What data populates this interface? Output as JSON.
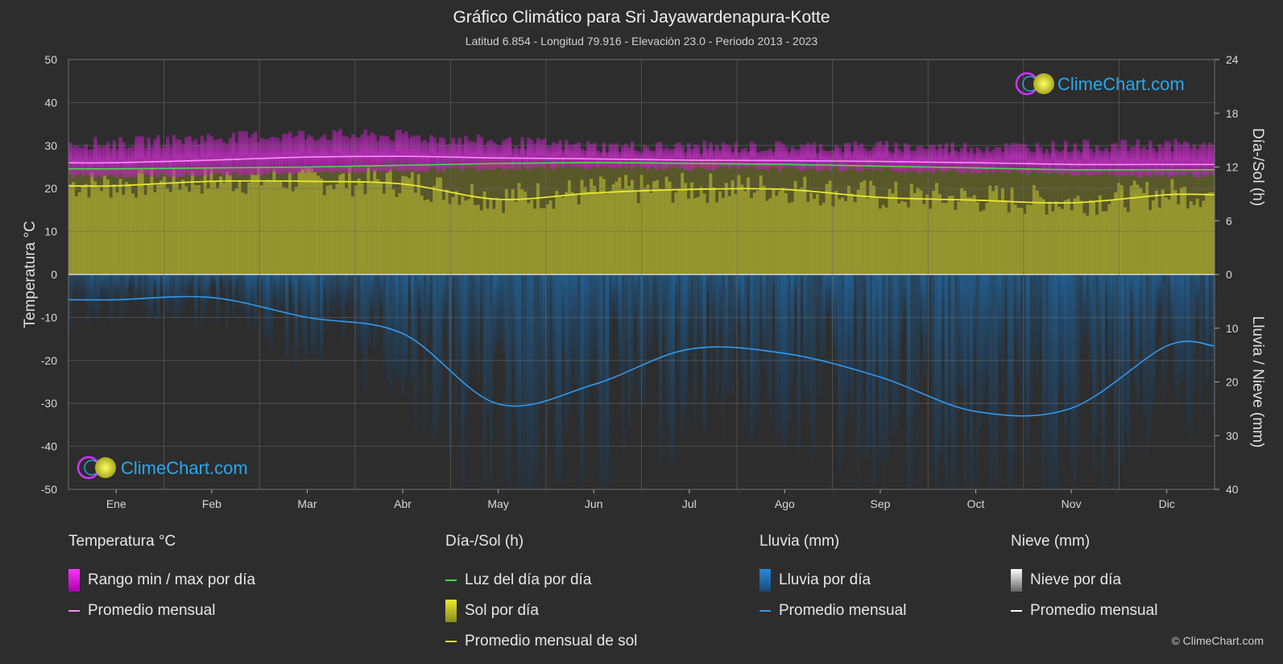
{
  "title": "Gráfico Climático para Sri Jayawardenapura-Kotte",
  "subtitle": "Latitud 6.854 - Longitud 79.916 - Elevación 23.0 - Periodo 2013 - 2023",
  "watermark": "ClimeChart.com",
  "copyright": "© ClimeChart.com",
  "colors": {
    "background": "#2d2d2d",
    "temp_range": "#d030d0",
    "temp_avg": "#ff88ff",
    "daylight": "#44dd44",
    "sun_fill": "#a0a030",
    "sun_avg": "#e8e830",
    "rain": "#2277bb",
    "rain_avg": "#3399ee",
    "snow_avg": "#ffffff"
  },
  "legend": {
    "temp": {
      "header": "Temperatura °C",
      "range": "Rango min / max por día",
      "avg": "Promedio mensual"
    },
    "sun": {
      "header": "Día-/Sol (h)",
      "daylight": "Luz del día por día",
      "sun": "Sol por día",
      "avg": "Promedio mensual de sol"
    },
    "rain": {
      "header": "Lluvia (mm)",
      "per_day": "Lluvia por día",
      "avg": "Promedio mensual"
    },
    "snow": {
      "header": "Nieve (mm)",
      "per_day": "Nieve por día",
      "avg": "Promedio mensual"
    }
  },
  "chart_data": {
    "type": "line",
    "categories": [
      "Ene",
      "Feb",
      "Mar",
      "Abr",
      "May",
      "Jun",
      "Jul",
      "Ago",
      "Sep",
      "Oct",
      "Nov",
      "Dic"
    ],
    "y_left": {
      "label": "Temperatura °C",
      "range": [
        -50,
        50
      ],
      "ticks": [
        50,
        40,
        30,
        20,
        10,
        0,
        -10,
        -20,
        -30,
        -40,
        -50
      ]
    },
    "y_right_top": {
      "label": "Día-/Sol (h)",
      "range": [
        0,
        24
      ],
      "ticks": [
        24,
        18,
        12,
        6,
        0
      ]
    },
    "y_right_bottom": {
      "label": "Lluvia / Nieve (mm)",
      "range": [
        0,
        40
      ],
      "ticks": [
        0,
        10,
        20,
        30,
        40
      ]
    },
    "series": [
      {
        "name": "Promedio mensual",
        "group": "temperature",
        "values": [
          26.0,
          26.6,
          27.3,
          27.5,
          27.1,
          26.9,
          26.6,
          26.5,
          26.3,
          26.0,
          25.6,
          25.6
        ]
      },
      {
        "name": "Rango min / max por día",
        "group": "temperature",
        "min": [
          23.0,
          23.2,
          23.8,
          24.2,
          24.8,
          25.0,
          24.7,
          24.6,
          24.3,
          23.9,
          23.4,
          23.1
        ],
        "max": [
          30.5,
          31.8,
          32.5,
          32.2,
          30.8,
          29.8,
          29.6,
          29.7,
          29.7,
          29.6,
          29.8,
          30.1
        ]
      },
      {
        "name": "Luz del día por día",
        "group": "sun",
        "values": [
          11.8,
          11.9,
          12.0,
          12.2,
          12.4,
          12.5,
          12.4,
          12.3,
          12.1,
          11.9,
          11.7,
          11.7
        ]
      },
      {
        "name": "Promedio mensual de sol",
        "group": "sun",
        "values": [
          9.9,
          10.4,
          10.4,
          10.1,
          8.4,
          9.1,
          9.5,
          9.5,
          8.6,
          8.3,
          8.0,
          8.9
        ]
      },
      {
        "name": "Promedio mensual",
        "group": "rain",
        "values": [
          4.7,
          4.3,
          8.0,
          11.0,
          24.1,
          20.5,
          13.9,
          14.7,
          19.1,
          25.5,
          24.9,
          13.3
        ]
      }
    ],
    "grid": true
  }
}
